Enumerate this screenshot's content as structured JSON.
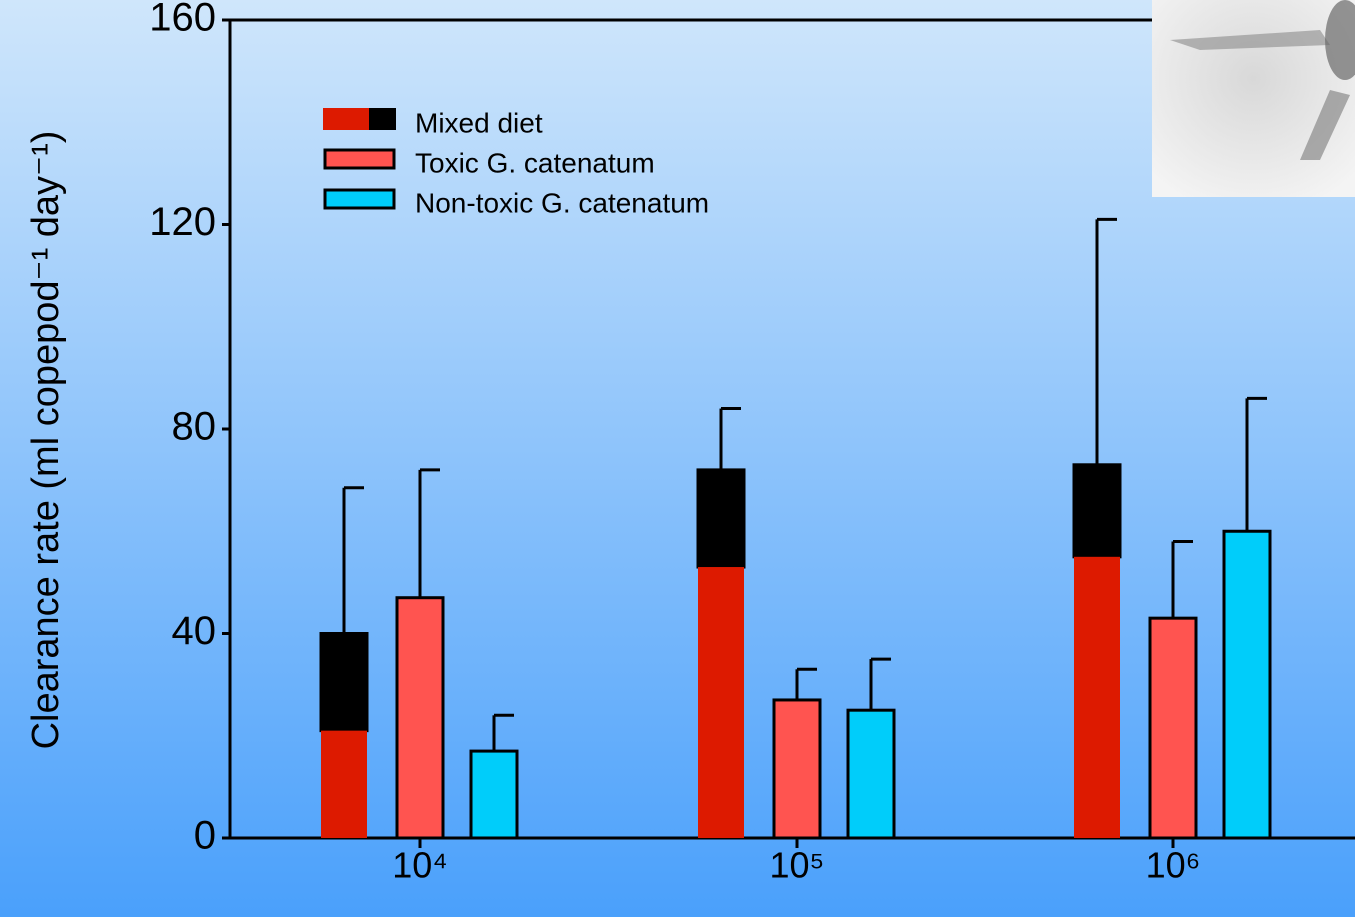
{
  "chart_data": {
    "type": "bar",
    "y_label": "Clearance rate (ml copepod⁻¹ day⁻¹)",
    "categories": [
      "10⁴",
      "10⁵",
      "10⁶"
    ],
    "ylim": [
      0,
      160
    ],
    "yticks": [
      0,
      40,
      80,
      120,
      160
    ],
    "series": [
      {
        "name": "Mixed diet",
        "color": "#dd1a00",
        "top_color": "#000000",
        "values": [
          21,
          53,
          55
        ],
        "top_values": [
          19,
          19,
          18
        ],
        "errors": [
          28.5,
          12,
          48
        ]
      },
      {
        "name": "Toxic G. catenatum",
        "color": "#ff5450",
        "values": [
          47,
          27,
          43
        ],
        "errors": [
          25,
          6,
          15
        ]
      },
      {
        "name": "Non-toxic G. catenatum",
        "color": "#00cdfa",
        "values": [
          17,
          25,
          60
        ],
        "errors": [
          7,
          10,
          26
        ]
      }
    ]
  }
}
